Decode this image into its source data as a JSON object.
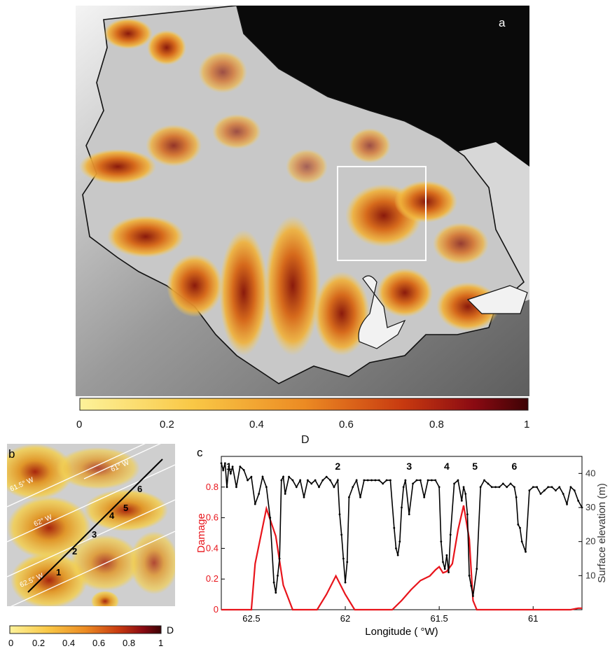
{
  "figure": {
    "panel_a": {
      "label": "a",
      "colorbar": {
        "ticks": [
          "0",
          "0.2",
          "0.4",
          "0.6",
          "0.8",
          "1"
        ],
        "label": "D",
        "colors": [
          "#fdf29a",
          "#f9c846",
          "#ec8b23",
          "#c83a10",
          "#8a0a12",
          "#3d0305"
        ]
      }
    },
    "panel_b": {
      "label": "b",
      "lon_labels": [
        "61° W",
        "61.5° W",
        "62° W",
        "62.5° W"
      ],
      "point_labels": [
        "1",
        "2",
        "3",
        "4",
        "5",
        "6"
      ],
      "colorbar": {
        "ticks": [
          "0",
          "0.2",
          "0.4",
          "0.6",
          "0.8",
          "1"
        ],
        "label": "D"
      }
    },
    "panel_c": {
      "label": "c",
      "peak_labels": [
        "1",
        "2",
        "3",
        "4",
        "5",
        "6"
      ]
    }
  },
  "chart_data": {
    "type": "line",
    "xlabel": "Longitude ( °W)",
    "ylabel_left": "Damage",
    "ylabel_right": "Surface elevation (m)",
    "xlim": [
      62.66,
      60.74
    ],
    "x_reversed": true,
    "x_ticks": [
      62.5,
      62,
      61.5,
      61
    ],
    "y_left_lim": [
      0,
      1.0
    ],
    "y_left_ticks": [
      0,
      0.2,
      0.4,
      0.6,
      0.8
    ],
    "y_right_lim": [
      0,
      45
    ],
    "y_right_ticks": [
      10,
      20,
      30,
      40
    ],
    "grid": false,
    "series": [
      {
        "name": "Damage",
        "axis": "left",
        "color": "#e8141b",
        "x": [
          62.66,
          62.5,
          62.48,
          62.42,
          62.37,
          62.33,
          62.28,
          62.15,
          62.1,
          62.05,
          62.0,
          61.95,
          61.75,
          61.7,
          61.65,
          61.6,
          61.55,
          61.52,
          61.5,
          61.48,
          61.46,
          61.43,
          61.4,
          61.37,
          61.34,
          61.32,
          61.3,
          61.0,
          60.9,
          60.8,
          60.76,
          60.74
        ],
        "values": [
          0.0,
          0.0,
          0.3,
          0.66,
          0.48,
          0.16,
          0.0,
          0.0,
          0.1,
          0.22,
          0.1,
          0.0,
          0.0,
          0.06,
          0.13,
          0.19,
          0.22,
          0.26,
          0.28,
          0.24,
          0.25,
          0.3,
          0.52,
          0.68,
          0.46,
          0.06,
          0.0,
          0.0,
          0.0,
          0.0,
          0.01,
          0.01
        ]
      },
      {
        "name": "Surface elevation",
        "axis": "right",
        "color": "#000000",
        "x": [
          62.66,
          62.65,
          62.64,
          62.63,
          62.62,
          62.61,
          62.6,
          62.58,
          62.56,
          62.54,
          62.52,
          62.5,
          62.48,
          62.46,
          62.44,
          62.42,
          62.4,
          62.38,
          62.37,
          62.36,
          62.35,
          62.34,
          62.33,
          62.32,
          62.3,
          62.28,
          62.26,
          62.24,
          62.22,
          62.2,
          62.18,
          62.16,
          62.14,
          62.12,
          62.1,
          62.08,
          62.06,
          62.04,
          62.03,
          62.02,
          62.01,
          62.0,
          61.99,
          61.98,
          61.96,
          61.94,
          61.92,
          61.9,
          61.88,
          61.86,
          61.84,
          61.82,
          61.8,
          61.78,
          61.76,
          61.74,
          61.73,
          61.72,
          61.71,
          61.7,
          61.69,
          61.68,
          61.66,
          61.64,
          61.62,
          61.6,
          61.58,
          61.56,
          61.54,
          61.52,
          61.5,
          61.49,
          61.48,
          61.47,
          61.46,
          61.45,
          61.44,
          61.42,
          61.4,
          61.38,
          61.37,
          61.36,
          61.35,
          61.34,
          61.33,
          61.32,
          61.3,
          61.28,
          61.26,
          61.24,
          61.22,
          61.2,
          61.18,
          61.16,
          61.14,
          61.12,
          61.1,
          61.09,
          61.08,
          61.07,
          61.06,
          61.04,
          61.02,
          61.0,
          60.98,
          60.96,
          60.94,
          60.92,
          60.9,
          60.88,
          60.86,
          60.84,
          60.82,
          60.8,
          60.78,
          60.76,
          60.74
        ],
        "values": [
          43,
          41,
          43,
          36,
          42,
          40,
          42,
          36,
          42,
          41,
          38,
          39,
          31,
          34,
          39,
          36,
          27,
          8,
          5,
          10,
          15,
          38,
          39,
          34,
          39,
          38,
          36,
          38,
          33,
          38,
          37,
          38,
          36,
          38,
          39,
          38,
          36,
          38,
          28,
          22,
          15,
          8,
          14,
          33,
          36,
          38,
          33,
          38,
          38,
          38,
          38,
          38,
          37,
          38,
          38,
          24,
          18,
          16,
          20,
          30,
          36,
          38,
          28,
          37,
          38,
          38,
          33,
          38,
          38,
          38,
          36,
          20,
          14,
          12,
          16,
          11,
          22,
          37,
          38,
          32,
          36,
          34,
          28,
          10,
          7,
          4,
          12,
          36,
          38,
          37,
          36,
          36,
          36,
          37,
          36,
          37,
          36,
          33,
          25,
          24,
          20,
          17,
          35,
          36,
          36,
          34,
          35,
          36,
          36,
          35,
          36,
          34,
          31,
          36,
          35,
          32,
          30
        ]
      }
    ]
  }
}
